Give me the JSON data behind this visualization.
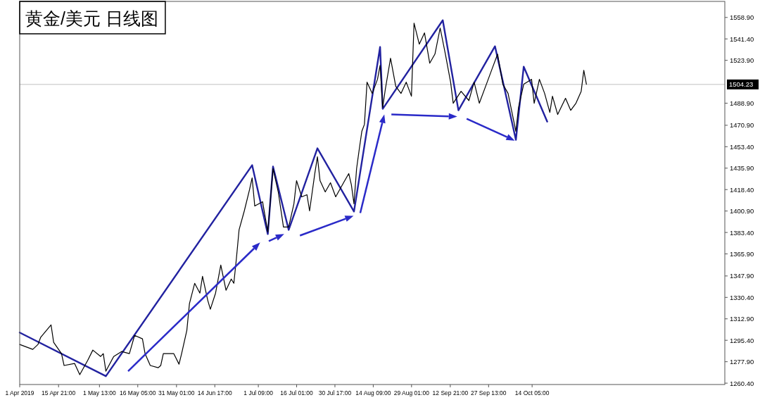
{
  "chart_data": {
    "type": "line",
    "title": "黄金/美元 日线图",
    "xlim": [
      "2019-04-01",
      "2019-12-27"
    ],
    "xticks": [
      {
        "value": "2019-04-01T00:00",
        "label": "1 Apr 2019"
      },
      {
        "value": "2019-04-15T21:00",
        "label": "15 Apr 21:00"
      },
      {
        "value": "2019-05-01T13:00",
        "label": "1 May 13:00"
      },
      {
        "value": "2019-05-16T05:00",
        "label": "16 May 05:00"
      },
      {
        "value": "2019-05-31T01:00",
        "label": "31 May 01:00"
      },
      {
        "value": "2019-06-14T17:00",
        "label": "14 Jun 17:00"
      },
      {
        "value": "2019-07-01T09:00",
        "label": "1 Jul 09:00"
      },
      {
        "value": "2019-07-16T01:00",
        "label": "16 Jul 01:00"
      },
      {
        "value": "2019-07-30T17:00",
        "label": "30 Jul 17:00"
      },
      {
        "value": "2019-08-14T09:00",
        "label": "14 Aug 09:00"
      },
      {
        "value": "2019-08-29T01:00",
        "label": "29 Aug 01:00"
      },
      {
        "value": "2019-09-12T21:00",
        "label": "12 Sep 21:00"
      },
      {
        "value": "2019-09-27T13:00",
        "label": "27 Sep 13:00"
      },
      {
        "value": "2019-10-14T05:00",
        "label": "14 Oct 05:00"
      }
    ],
    "ylim": [
      1259.3,
      1572
    ],
    "yticks": [
      {
        "value": 1260.4,
        "label": "1260.40"
      },
      {
        "value": 1277.9,
        "label": "1277.90"
      },
      {
        "value": 1295.4,
        "label": "1295.40"
      },
      {
        "value": 1312.9,
        "label": "1312.90"
      },
      {
        "value": 1330.4,
        "label": "1330.40"
      },
      {
        "value": 1347.9,
        "label": "1347.90"
      },
      {
        "value": 1365.9,
        "label": "1365.90"
      },
      {
        "value": 1383.4,
        "label": "1383.40"
      },
      {
        "value": 1400.9,
        "label": "1400.90"
      },
      {
        "value": 1418.4,
        "label": "1418.40"
      },
      {
        "value": 1435.9,
        "label": "1435.90"
      },
      {
        "value": 1453.4,
        "label": "1453.40"
      },
      {
        "value": 1470.9,
        "label": "1470.90"
      },
      {
        "value": 1488.9,
        "label": "1488.90"
      },
      {
        "value": 1523.9,
        "label": "1523.90"
      },
      {
        "value": 1541.4,
        "label": "1541.40"
      },
      {
        "value": 1558.9,
        "label": "1558.90"
      }
    ],
    "series": [
      {
        "color": "#000000",
        "x": [
          "2019-04-01",
          "2019-04-06",
          "2019-04-08",
          "2019-04-09",
          "2019-04-13",
          "2019-04-14",
          "2019-04-17",
          "2019-04-18",
          "2019-04-22",
          "2019-04-24",
          "2019-04-27",
          "2019-04-29",
          "2019-05-02",
          "2019-05-03",
          "2019-05-04",
          "2019-05-07",
          "2019-05-10",
          "2019-05-13",
          "2019-05-15",
          "2019-05-18",
          "2019-05-19",
          "2019-05-21",
          "2019-05-24",
          "2019-05-25",
          "2019-05-26",
          "2019-05-30",
          "2019-06-01",
          "2019-06-02",
          "2019-06-04",
          "2019-06-05",
          "2019-06-07",
          "2019-06-09",
          "2019-06-10",
          "2019-06-12",
          "2019-06-13",
          "2019-06-15",
          "2019-06-17",
          "2019-06-19",
          "2019-06-21",
          "2019-06-22",
          "2019-06-23",
          "2019-06-24",
          "2019-06-26",
          "2019-06-28",
          "2019-06-29",
          "2019-06-30",
          "2019-07-03",
          "2019-07-05",
          "2019-07-07",
          "2019-07-09",
          "2019-07-11",
          "2019-07-13",
          "2019-07-15",
          "2019-07-16",
          "2019-07-18",
          "2019-07-20",
          "2019-07-21",
          "2019-07-23",
          "2019-07-24",
          "2019-07-25",
          "2019-07-27",
          "2019-07-29",
          "2019-07-31",
          "2019-08-03",
          "2019-08-05",
          "2019-08-06",
          "2019-08-07",
          "2019-08-08",
          "2019-08-09",
          "2019-08-10",
          "2019-08-11",
          "2019-08-12",
          "2019-08-14",
          "2019-08-16",
          "2019-08-17",
          "2019-08-18",
          "2019-08-19",
          "2019-08-21",
          "2019-08-23",
          "2019-08-25",
          "2019-08-27",
          "2019-08-29",
          "2019-08-30",
          "2019-09-01",
          "2019-09-03",
          "2019-09-05",
          "2019-09-07",
          "2019-09-09",
          "2019-09-11",
          "2019-09-13",
          "2019-09-14",
          "2019-09-17",
          "2019-09-20",
          "2019-09-22",
          "2019-09-24",
          "2019-09-27",
          "2019-09-29",
          "2019-10-01",
          "2019-10-03",
          "2019-10-05",
          "2019-10-08",
          "2019-10-09",
          "2019-10-11",
          "2019-10-14",
          "2019-10-15",
          "2019-10-17",
          "2019-10-19",
          "2019-10-21",
          "2019-10-22",
          "2019-10-24",
          "2019-10-27",
          "2019-10-29",
          "2019-10-31",
          "2019-11-02",
          "2019-11-03",
          "2019-11-04"
        ],
        "values": [
          1292.0,
          1288.0,
          1292.0,
          1297.7,
          1308.0,
          1293.7,
          1284.5,
          1274.8,
          1276.5,
          1267.3,
          1278.8,
          1287.4,
          1282.2,
          1284.5,
          1270.2,
          1282.2,
          1286.2,
          1284.5,
          1299.4,
          1296.6,
          1284.5,
          1274.8,
          1273.0,
          1274.8,
          1284.5,
          1284.5,
          1275.9,
          1284.5,
          1303.5,
          1325.3,
          1341.9,
          1333.9,
          1347.6,
          1328.1,
          1320.7,
          1333.9,
          1356.8,
          1336.2,
          1345.4,
          1341.9,
          1362.6,
          1385.5,
          1401.0,
          1418.3,
          1428.0,
          1405.0,
          1408.5,
          1383.8,
          1435.5,
          1416.5,
          1387.8,
          1387.8,
          1406.8,
          1425.7,
          1412.5,
          1414.2,
          1401.0,
          1431.5,
          1445.2,
          1425.7,
          1416.5,
          1424.0,
          1412.5,
          1424.0,
          1431.5,
          1422.3,
          1406.8,
          1435.5,
          1451.0,
          1465.9,
          1471.6,
          1506.1,
          1496.9,
          1508.4,
          1519.8,
          1485.4,
          1500.3,
          1525.6,
          1502.6,
          1496.9,
          1506.1,
          1494.6,
          1554.3,
          1537.1,
          1546.3,
          1521.6,
          1529.0,
          1550.3,
          1529.0,
          1506.1,
          1488.9,
          1498.6,
          1491.1,
          1506.1,
          1488.9,
          1506.1,
          1517.6,
          1529.0,
          1504.4,
          1496.9,
          1465.9,
          1485.4,
          1504.4,
          1508.4,
          1488.9,
          1508.4,
          1496.9,
          1481.4,
          1494.6,
          1479.7,
          1492.9,
          1483.1,
          1488.9,
          1498.6,
          1515.8,
          1504.4
        ]
      },
      {
        "color": "#2222a0",
        "x": [
          "2019-04-01",
          "2019-05-04",
          "2019-06-29",
          "2019-07-05",
          "2019-07-07",
          "2019-07-13",
          "2019-07-24",
          "2019-08-07",
          "2019-08-17",
          "2019-08-18",
          "2019-09-10",
          "2019-09-16",
          "2019-09-30",
          "2019-10-08",
          "2019-10-11",
          "2019-10-20"
        ],
        "values": [
          1301.7,
          1266.1,
          1438.3,
          1382.1,
          1437.2,
          1385.5,
          1452.1,
          1400.5,
          1534.8,
          1484.3,
          1556.6,
          1483.1,
          1535.4,
          1459.0,
          1518.7,
          1473.9
        ]
      }
    ],
    "ref_lines": [
      {
        "axis": "y",
        "value": 1504.23,
        "label": "1504.23"
      }
    ]
  }
}
